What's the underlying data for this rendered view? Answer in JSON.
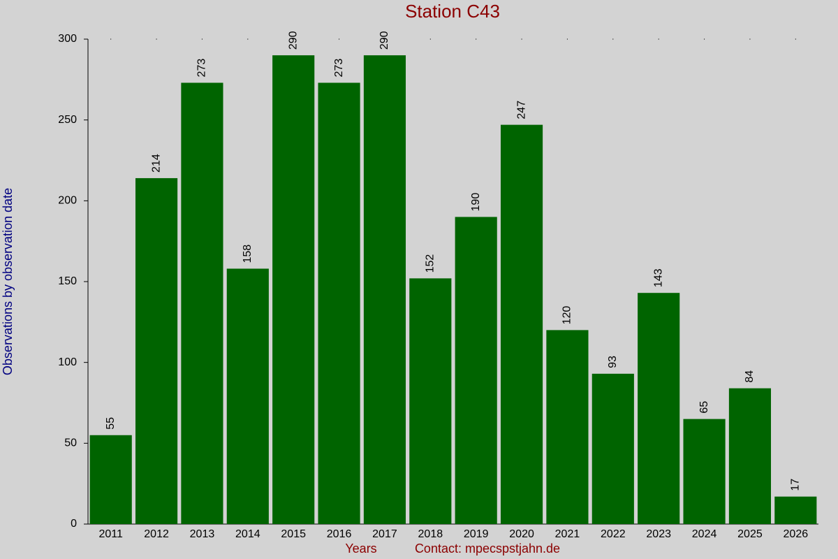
{
  "chart_data": {
    "type": "bar",
    "title": "Station C43",
    "ylabel": "Observations by observation date",
    "xlabel": "Years",
    "contact": "Contact: mpecspstjahn.de",
    "categories": [
      "2011",
      "2012",
      "2013",
      "2014",
      "2015",
      "2016",
      "2017",
      "2018",
      "2019",
      "2020",
      "2021",
      "2022",
      "2023",
      "2024",
      "2025",
      "2026"
    ],
    "values": [
      55,
      214,
      273,
      158,
      290,
      273,
      290,
      152,
      190,
      247,
      120,
      93,
      143,
      65,
      84,
      17
    ],
    "color": "#006400",
    "ylim": [
      0,
      300
    ],
    "yticks": [
      0,
      50,
      100,
      150,
      200,
      250,
      300
    ],
    "grid": false
  }
}
